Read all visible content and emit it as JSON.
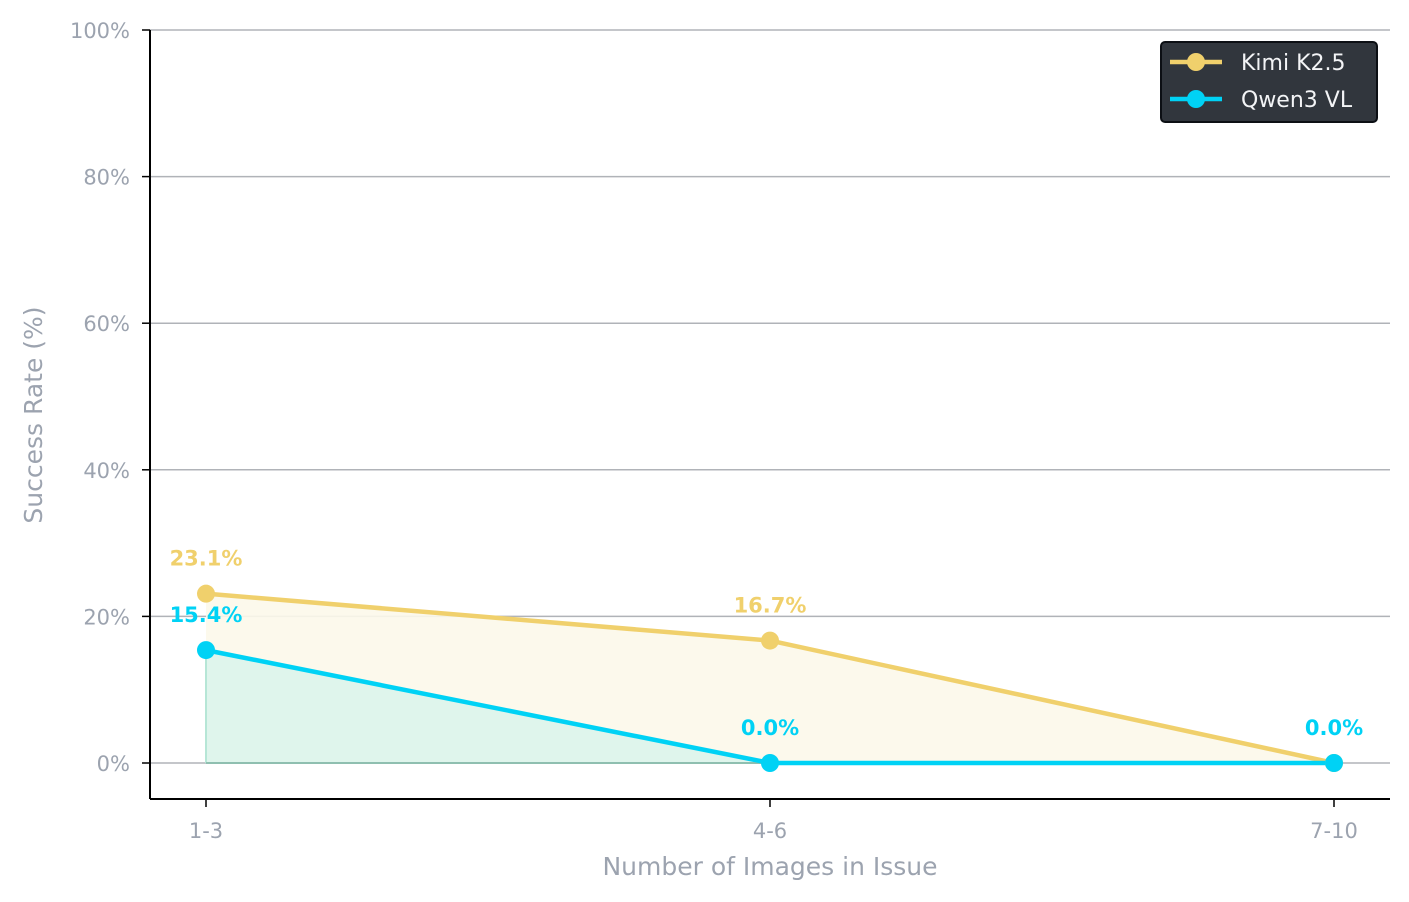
{
  "chart_data": {
    "type": "line",
    "categories": [
      "1-3",
      "4-6",
      "7-10"
    ],
    "series": [
      {
        "name": "Kimi K2.5",
        "values": [
          23.1,
          16.7,
          0.0
        ],
        "labels": [
          "23.1%",
          "16.7%",
          ""
        ],
        "color": "#f0d06c",
        "fill": "#fcf8ea"
      },
      {
        "name": "Qwen3 VL",
        "values": [
          15.4,
          0.0,
          0.0
        ],
        "labels": [
          "15.4%",
          "0.0%",
          "0.0%"
        ],
        "color": "#00d2f5",
        "fill": "#dcf4ec"
      }
    ],
    "xlabel": "Number of Images in Issue",
    "ylabel": "Success Rate (%)",
    "ylim": [
      0,
      100
    ],
    "yticks": [
      0,
      20,
      40,
      60,
      80,
      100
    ],
    "ytick_labels": [
      "0%",
      "20%",
      "40%",
      "60%",
      "80%",
      "100%"
    ],
    "grid": "horizontal",
    "legend_position": "top-right"
  }
}
